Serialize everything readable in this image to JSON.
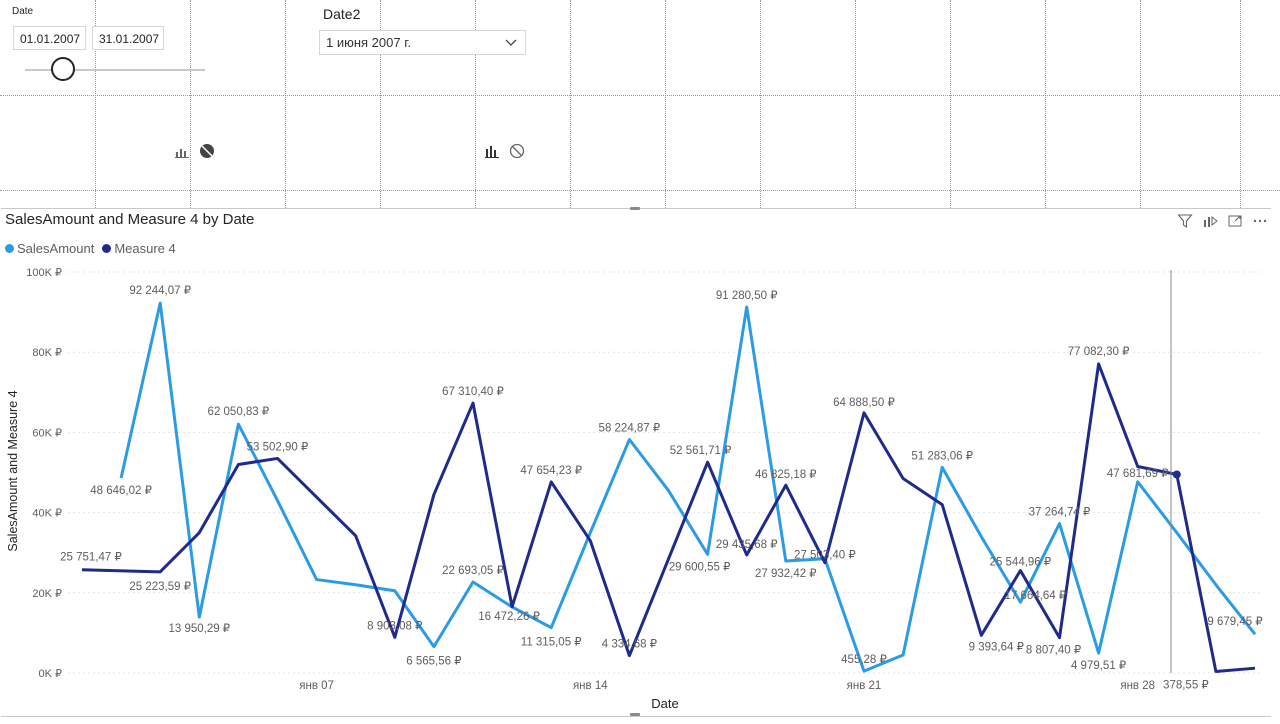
{
  "slicer_date": {
    "title": "Date",
    "start": "01.01.2007",
    "end": "31.01.2007",
    "slider_level": 0.21
  },
  "slicer_date2": {
    "title": "Date2",
    "selected": "1 июня 2007 г."
  },
  "visual": {
    "title": "SalesAmount and Measure 4 by Date",
    "header_icons": [
      "filter-icon",
      "drill-mode-icon",
      "focus-mode-icon",
      "more-options-icon"
    ]
  },
  "colors": {
    "sales": "#2c9be6",
    "measure4": "#1f2a8c",
    "grid": "#e3e3e3",
    "axis_text": "#605e5c"
  },
  "chart_data": {
    "type": "line",
    "title": "SalesAmount and Measure 4 by Date",
    "xlabel": "Date",
    "ylabel": "SalesAmount and Measure 4",
    "ylim": [
      0,
      100000
    ],
    "y_ticks": [
      "0K ₽",
      "20K ₽",
      "40K ₽",
      "60K ₽",
      "80K ₽",
      "100K ₽"
    ],
    "x_ticks": [
      {
        "day": 7,
        "label": "янв 07"
      },
      {
        "day": 14,
        "label": "янв 14"
      },
      {
        "day": 21,
        "label": "янв 21"
      },
      {
        "day": 28,
        "label": "янв 28"
      }
    ],
    "legend_position": "top-left",
    "grid": true,
    "series": [
      {
        "name": "SalesAmount",
        "color": "#2c9be6",
        "points": [
          {
            "day": 2,
            "value": 48646.02,
            "label": "48 646,02 ₽"
          },
          {
            "day": 3,
            "value": 92244.07,
            "label": "92 244,07 ₽"
          },
          {
            "day": 4,
            "value": 13950.29,
            "label": "13 950,29 ₽"
          },
          {
            "day": 5,
            "value": 62050.83,
            "label": "62 050,83 ₽"
          },
          {
            "day": 6,
            "value": 43000,
            "label": ""
          },
          {
            "day": 7,
            "value": 23300,
            "label": ""
          },
          {
            "day": 8,
            "value": 22000,
            "label": ""
          },
          {
            "day": 9,
            "value": 20500,
            "label": ""
          },
          {
            "day": 10,
            "value": 6565.56,
            "label": "6 565,56 ₽"
          },
          {
            "day": 11,
            "value": 22693.05,
            "label": "22 693,05 ₽"
          },
          {
            "day": 12,
            "value": 16472.26,
            "label": "16 472,26 ₽"
          },
          {
            "day": 13,
            "value": 11315.05,
            "label": "11 315,05 ₽"
          },
          {
            "day": 14,
            "value": 35000,
            "label": ""
          },
          {
            "day": 15,
            "value": 58224.87,
            "label": "58 224,87 ₽"
          },
          {
            "day": 16,
            "value": 45500,
            "label": ""
          },
          {
            "day": 17,
            "value": 29600.55,
            "label": "29 600,55 ₽"
          },
          {
            "day": 18,
            "value": 91280.5,
            "label": "91 280,50 ₽"
          },
          {
            "day": 19,
            "value": 27932.42,
            "label": "27 932,42 ₽"
          },
          {
            "day": 20,
            "value": 28500,
            "label": ""
          },
          {
            "day": 21,
            "value": 455.28,
            "label": "455,28 ₽"
          },
          {
            "day": 22,
            "value": 4500,
            "label": ""
          },
          {
            "day": 23,
            "value": 51283.06,
            "label": "51 283,06 ₽"
          },
          {
            "day": 24,
            "value": 34000,
            "label": ""
          },
          {
            "day": 25,
            "value": 17664.64,
            "label": "17 664,64 ₽"
          },
          {
            "day": 26,
            "value": 37264.74,
            "label": "37 264,74 ₽"
          },
          {
            "day": 27,
            "value": 4979.51,
            "label": "4 979,51 ₽"
          },
          {
            "day": 28,
            "value": 47681.69,
            "label": "47 681,69 ₽"
          },
          {
            "day": 29,
            "value": 35000,
            "label": ""
          },
          {
            "day": 30,
            "value": 22000,
            "label": ""
          },
          {
            "day": 31,
            "value": 9679.45,
            "label": "9 679,45 ₽"
          }
        ]
      },
      {
        "name": "Measure 4",
        "color": "#1f2a8c",
        "points": [
          {
            "day": 1,
            "value": 25751.47,
            "label": "25 751,47 ₽"
          },
          {
            "day": 3,
            "value": 25223.59,
            "label": "25 223,59 ₽"
          },
          {
            "day": 4,
            "value": 35000,
            "label": ""
          },
          {
            "day": 5,
            "value": 52000,
            "label": ""
          },
          {
            "day": 6,
            "value": 53502.9,
            "label": "53 502,90 ₽"
          },
          {
            "day": 8,
            "value": 34200,
            "label": ""
          },
          {
            "day": 9,
            "value": 8903.08,
            "label": "8 903,08 ₽"
          },
          {
            "day": 10,
            "value": 44500,
            "label": ""
          },
          {
            "day": 11,
            "value": 67310.4,
            "label": "67 310,40 ₽"
          },
          {
            "day": 12,
            "value": 16500,
            "label": ""
          },
          {
            "day": 13,
            "value": 47654.23,
            "label": "47 654,23 ₽"
          },
          {
            "day": 14,
            "value": 33000,
            "label": ""
          },
          {
            "day": 15,
            "value": 4334.68,
            "label": "4 334,68 ₽"
          },
          {
            "day": 17,
            "value": 52561.71,
            "label": "52 561,71 ₽"
          },
          {
            "day": 18,
            "value": 29435.68,
            "label": "29 435,68 ₽"
          },
          {
            "day": 19,
            "value": 46825.18,
            "label": "46 825,18 ₽"
          },
          {
            "day": 20,
            "value": 27503.4,
            "label": "27 503,40 ₽"
          },
          {
            "day": 21,
            "value": 64888.5,
            "label": "64 888,50 ₽"
          },
          {
            "day": 22,
            "value": 48500,
            "label": ""
          },
          {
            "day": 23,
            "value": 42000,
            "label": ""
          },
          {
            "day": 24,
            "value": 9393.64,
            "label": "9 393,64 ₽"
          },
          {
            "day": 25,
            "value": 25544.96,
            "label": "25 544,96 ₽"
          },
          {
            "day": 26,
            "value": 8807.4,
            "label": "8 807,40 ₽"
          },
          {
            "day": 27,
            "value": 77082.3,
            "label": "77 082,30 ₽"
          },
          {
            "day": 28,
            "value": 51500,
            "label": ""
          },
          {
            "day": 29,
            "value": 49500,
            "label": ""
          },
          {
            "day": 30,
            "value": 378.55,
            "label": "378,55 ₽"
          },
          {
            "day": 31,
            "value": 1200,
            "label": ""
          }
        ]
      }
    ]
  }
}
